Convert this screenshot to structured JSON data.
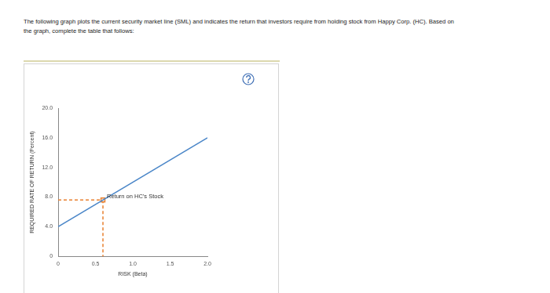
{
  "header": "The following graph plots the current security market line (SML) and indicates the return that investors require from holding stock from Happy Corp. (HC). Based on the graph, complete the table that follows:",
  "chart_data": {
    "type": "line",
    "x_label": "RISK (Beta)",
    "y_label": "REQUIRED RATE OF RETURN (Percent)",
    "series": [
      {
        "color": "#4a86c8",
        "x": [
          0,
          2.0
        ],
        "values": [
          4.0,
          16.0
        ],
        "marker": "none",
        "line_style": "solid"
      },
      {
        "color": "#e8802f",
        "x": [
          0.6
        ],
        "values": [
          7.6
        ],
        "marker": "square",
        "line_style": "none"
      }
    ],
    "annotations": [
      {
        "text": "Return on HC's Stock",
        "x": 0.6,
        "y": 7.6
      }
    ],
    "xlim": [
      0,
      2.0
    ],
    "xticks": [
      0,
      0.5,
      {
        "value": 1.0,
        "label": "1.0"
      },
      {
        "value": 1.5,
        "label": "1.5"
      },
      {
        "value": 2.0,
        "label": "2.0"
      }
    ],
    "ylim": [
      0,
      20.0
    ],
    "yticks": [
      0,
      {
        "value": 4.0,
        "label": "4.0"
      },
      {
        "value": 8.0,
        "label": "8.0"
      },
      {
        "value": 12.0,
        "label": "12.0"
      },
      {
        "value": 16.0,
        "label": "16.0"
      },
      {
        "value": 20.0,
        "label": "20.0"
      }
    ],
    "grid": false
  }
}
